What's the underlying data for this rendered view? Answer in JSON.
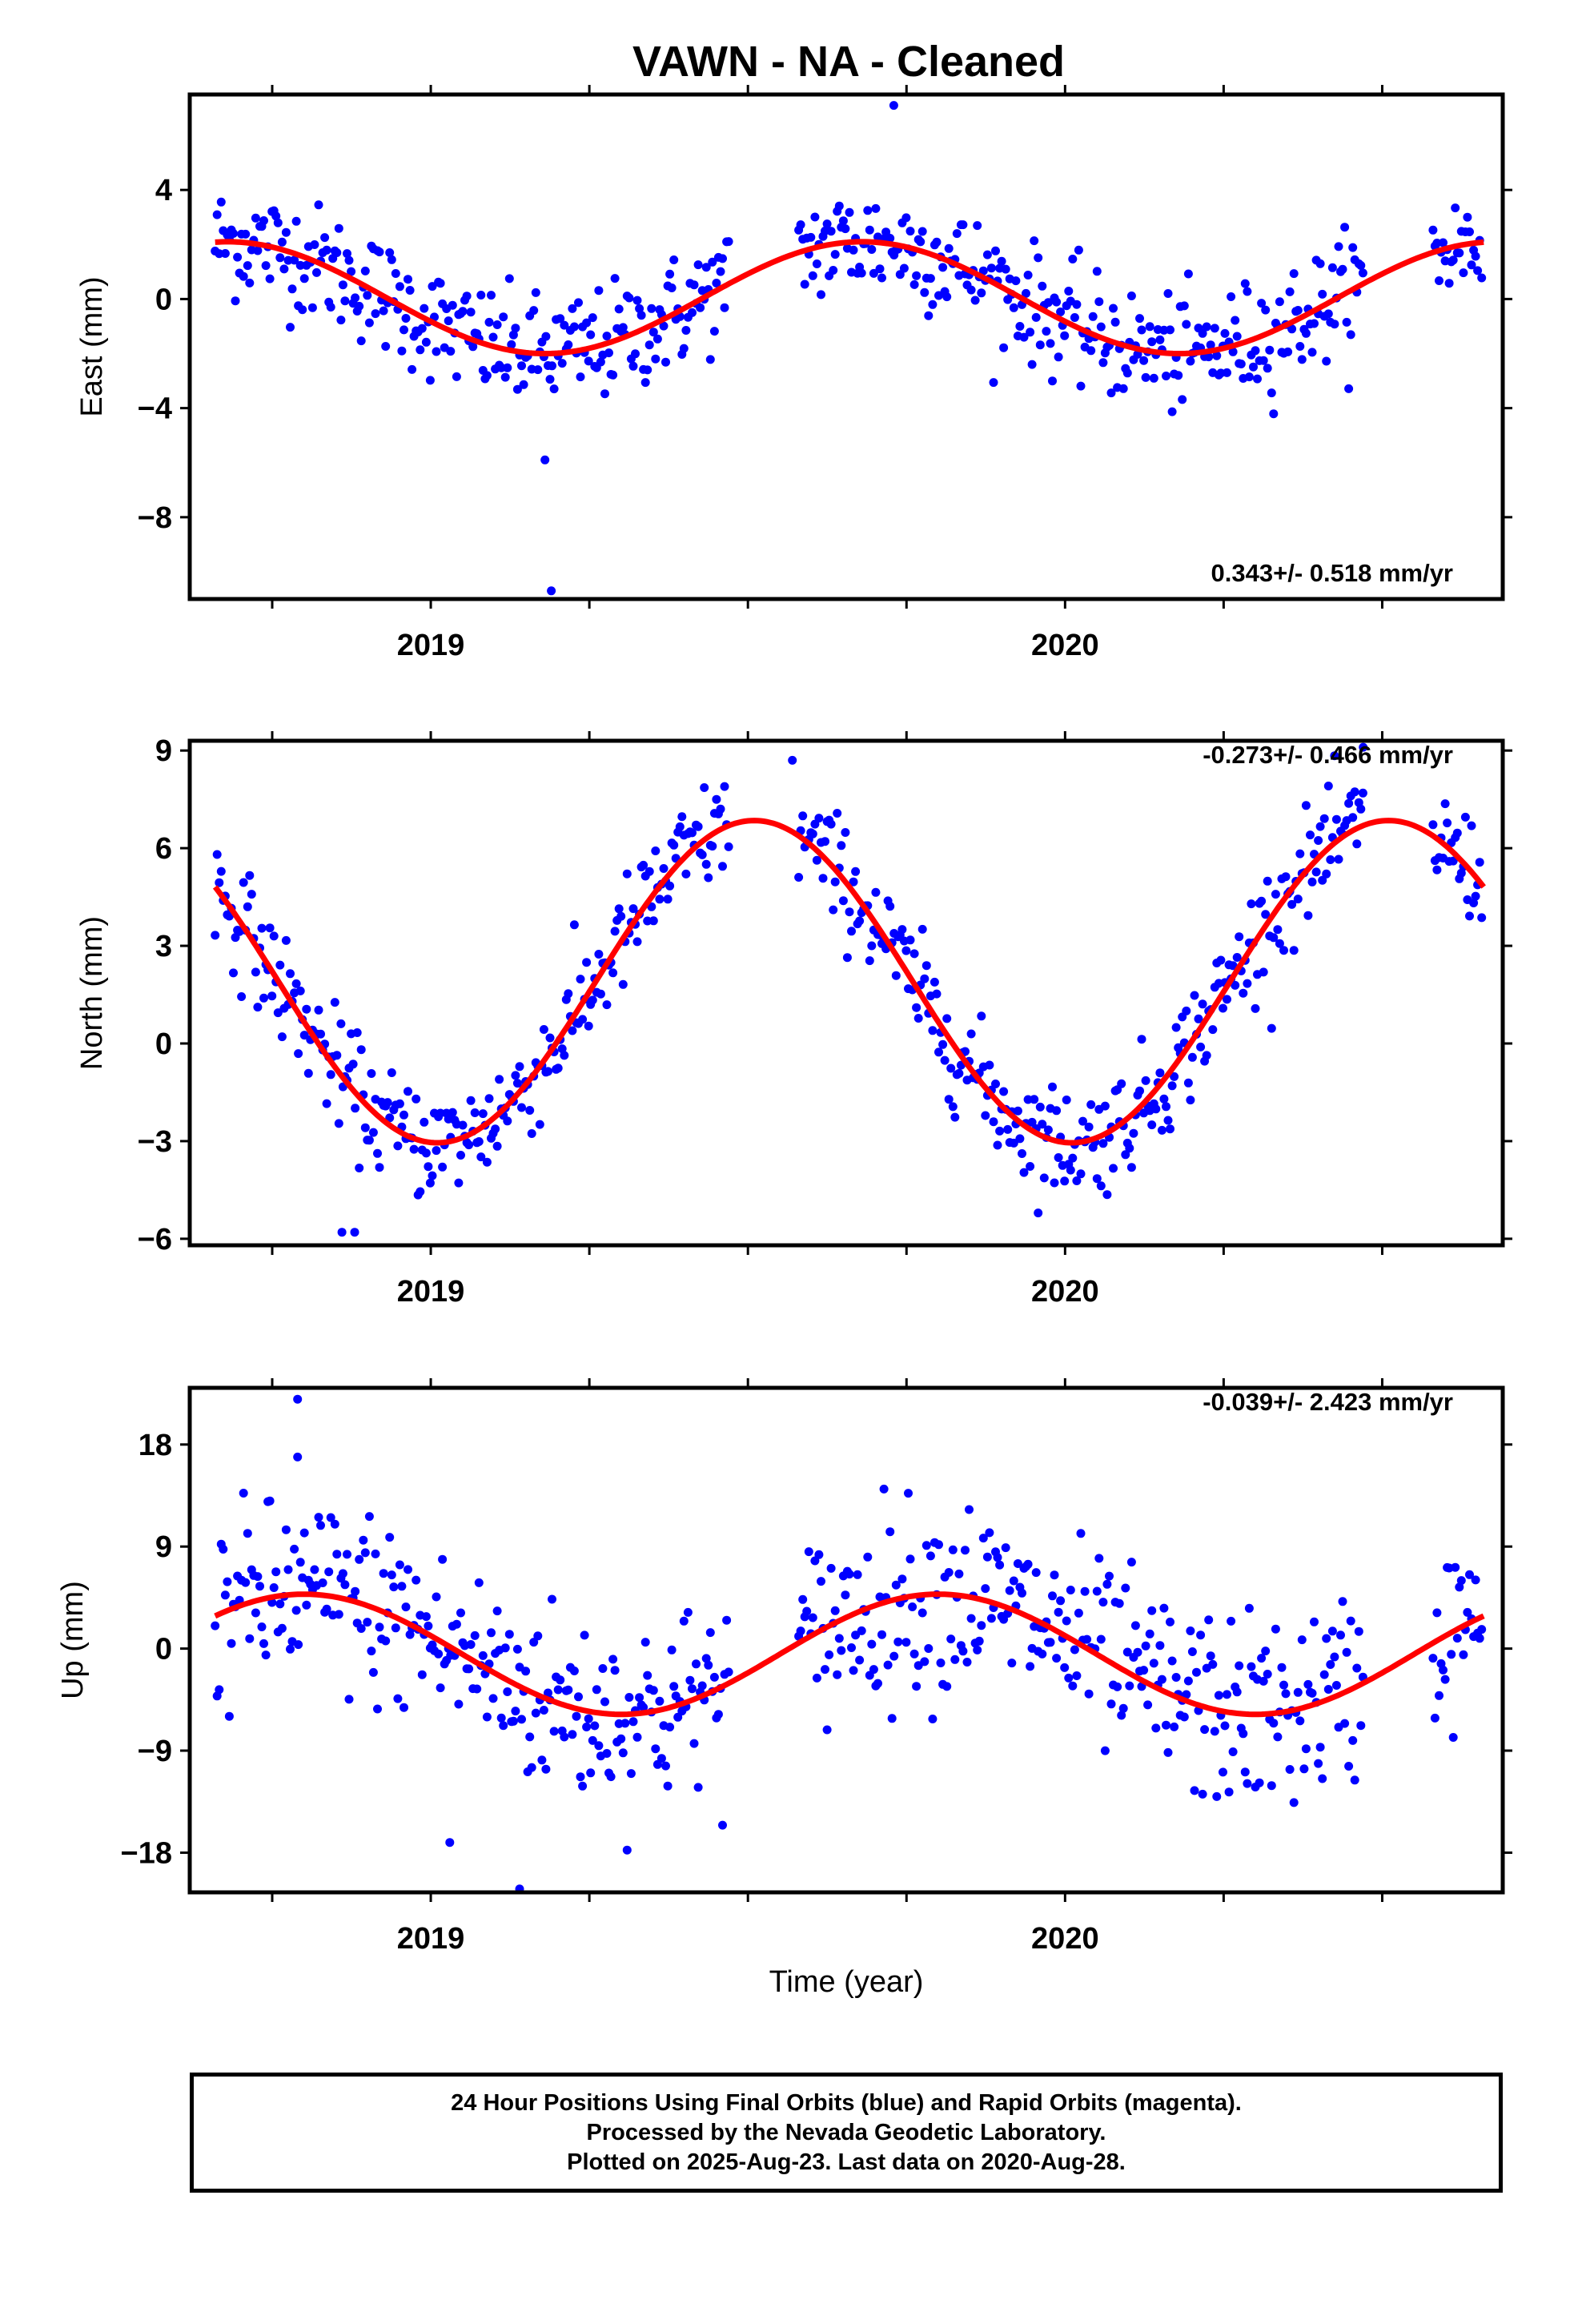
{
  "title": "VAWN  - NA - Cleaned",
  "footer": {
    "line1": "24 Hour Positions Using Final Orbits (blue) and Rapid Orbits (magenta).",
    "line2": "Processed by the Nevada Geodetic Laboratory.",
    "line3": "Plotted on 2025-Aug-23. Last data on 2020-Aug-28."
  },
  "colors": {
    "points": "#0000ff",
    "fit": "#ff0000",
    "axes": "#000000"
  },
  "chart_data": [
    {
      "type": "scatter",
      "panel": "east",
      "ylabel": "East (mm)",
      "xlabel": "",
      "xlim": [
        2018.62,
        2020.69
      ],
      "ylim": [
        -11,
        7.5
      ],
      "yticks": [
        4,
        0,
        -4,
        -8
      ],
      "ytick_labels": [
        "4",
        "0",
        "−4",
        "−8"
      ],
      "xtick_labels": [
        "2019",
        "2020"
      ],
      "xticks": [
        2019,
        2020
      ],
      "rate_label": "0.343+/- 0.518 mm/yr",
      "rate_position": "bottom-right",
      "fit": {
        "offset": 0.05,
        "amplitude": 2.05,
        "peak_year": 2019.68
      },
      "noise_sd": 1.05,
      "outliers": [
        {
          "x": 2019.19,
          "y": -10.7
        },
        {
          "x": 2019.18,
          "y": -5.9
        },
        {
          "x": 2019.73,
          "y": 7.1
        }
      ],
      "data_ranges": [
        [
          2018.66,
          2019.47
        ],
        [
          2019.58,
          2020.47
        ],
        [
          2020.58,
          2020.66
        ]
      ]
    },
    {
      "type": "scatter",
      "panel": "north",
      "ylabel": "North (mm)",
      "xlabel": "",
      "xlim": [
        2018.62,
        2020.69
      ],
      "ylim": [
        -6.2,
        9.3
      ],
      "yticks": [
        9,
        6,
        3,
        0,
        -3,
        -6
      ],
      "ytick_labels": [
        "9",
        "6",
        "3",
        "0",
        "−3",
        "−6"
      ],
      "xtick_labels": [
        "2019",
        "2020"
      ],
      "xticks": [
        2019,
        2020
      ],
      "rate_label": "-0.273+/- 0.466 mm/yr",
      "rate_position": "top-right",
      "fit": {
        "offset": 1.9,
        "amplitude": 4.95,
        "peak_year": 2019.51
      },
      "noise_sd": 0.85,
      "outliers": [
        {
          "x": 2018.86,
          "y": -5.8
        },
        {
          "x": 2018.88,
          "y": -5.8
        },
        {
          "x": 2019.57,
          "y": 8.7
        },
        {
          "x": 2020.47,
          "y": 9.1
        }
      ],
      "data_ranges": [
        [
          2018.66,
          2019.47
        ],
        [
          2019.58,
          2020.47
        ],
        [
          2020.58,
          2020.66
        ]
      ]
    },
    {
      "type": "scatter",
      "panel": "up",
      "ylabel": "Up (mm)",
      "xlabel": "Time (year)",
      "xlim": [
        2018.62,
        2020.69
      ],
      "ylim": [
        -21.5,
        23
      ],
      "yticks": [
        18,
        9,
        0,
        -9,
        -18
      ],
      "ytick_labels": [
        "18",
        "9",
        "0",
        "−9",
        "−18"
      ],
      "xtick_labels": [
        "2019",
        "2020"
      ],
      "xticks": [
        2019,
        2020
      ],
      "rate_label": "-0.039+/- 2.423 mm/yr",
      "rate_position": "top-right",
      "fit": {
        "offset": -0.5,
        "amplitude": 5.3,
        "peak_year": 2018.8
      },
      "noise_sd": 4.2,
      "outliers": [
        {
          "x": 2018.79,
          "y": 22.0
        },
        {
          "x": 2018.79,
          "y": 16.9
        },
        {
          "x": 2019.14,
          "y": -21.2
        },
        {
          "x": 2019.03,
          "y": -17.1
        }
      ],
      "data_ranges": [
        [
          2018.66,
          2019.47
        ],
        [
          2019.58,
          2020.47
        ],
        [
          2020.58,
          2020.66
        ]
      ]
    }
  ]
}
